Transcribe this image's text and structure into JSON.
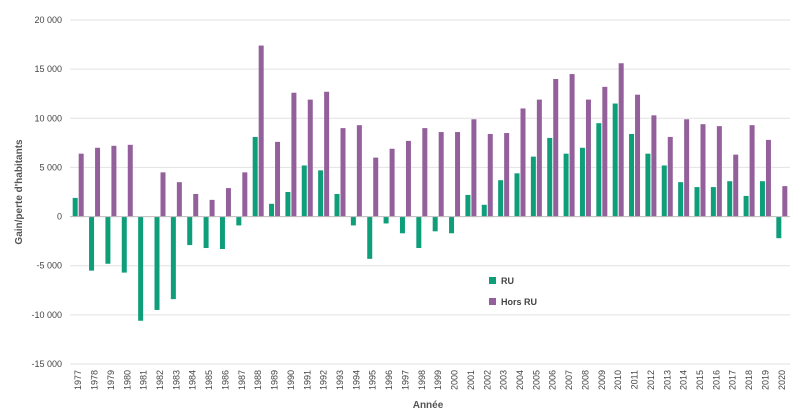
{
  "chart_data": {
    "type": "bar",
    "title": "",
    "xlabel": "Année",
    "ylabel": "Gain/perte d'habitants",
    "ylim": [
      -15000,
      20000
    ],
    "yticks": [
      20000,
      15000,
      10000,
      5000,
      0,
      -5000,
      -10000,
      -15000
    ],
    "ytick_labels": [
      "20 000",
      "15 000",
      "10 000",
      "5 000",
      "0",
      "-5 000",
      "-10 000",
      "-15 000"
    ],
    "grid": true,
    "legend_position": "center",
    "categories": [
      "1977",
      "1978",
      "1979",
      "1980",
      "1981",
      "1982",
      "1983",
      "1984",
      "1985",
      "1986",
      "1987",
      "1988",
      "1989",
      "1990",
      "1991",
      "1992",
      "1993",
      "1994",
      "1995",
      "1996",
      "1997",
      "1998",
      "1999",
      "2000",
      "2001",
      "2002",
      "2003",
      "2004",
      "2005",
      "2006",
      "2007",
      "2008",
      "2009",
      "2010",
      "2011",
      "2012",
      "2013",
      "2014",
      "2015",
      "2016",
      "2017",
      "2018",
      "2019",
      "2020"
    ],
    "series": [
      {
        "name": "RU",
        "color": "#0f9e7a",
        "values": [
          1900,
          -5500,
          -4800,
          -5700,
          -10600,
          -9500,
          -8400,
          -2900,
          -3200,
          -3300,
          -900,
          8100,
          1300,
          2500,
          5200,
          4700,
          2300,
          -900,
          -4300,
          -700,
          -1700,
          -3200,
          -1500,
          -1700,
          2200,
          1200,
          3700,
          4400,
          6100,
          8000,
          6400,
          7000,
          9500,
          11500,
          8400,
          6400,
          5200,
          3500,
          3000,
          3000,
          3600,
          2100,
          3600,
          -2200
        ]
      },
      {
        "name": "Hors RU",
        "color": "#94609b",
        "values": [
          6400,
          7000,
          7200,
          7300,
          0,
          4500,
          3500,
          2300,
          1700,
          2900,
          4500,
          17400,
          7600,
          12600,
          11900,
          12700,
          9000,
          9300,
          6000,
          6900,
          7700,
          9000,
          8600,
          8600,
          9900,
          8400,
          8500,
          11000,
          11900,
          14000,
          14500,
          11900,
          13200,
          15600,
          12400,
          10300,
          8100,
          9900,
          9400,
          9200,
          6300,
          9300,
          7800,
          3100
        ]
      }
    ]
  }
}
